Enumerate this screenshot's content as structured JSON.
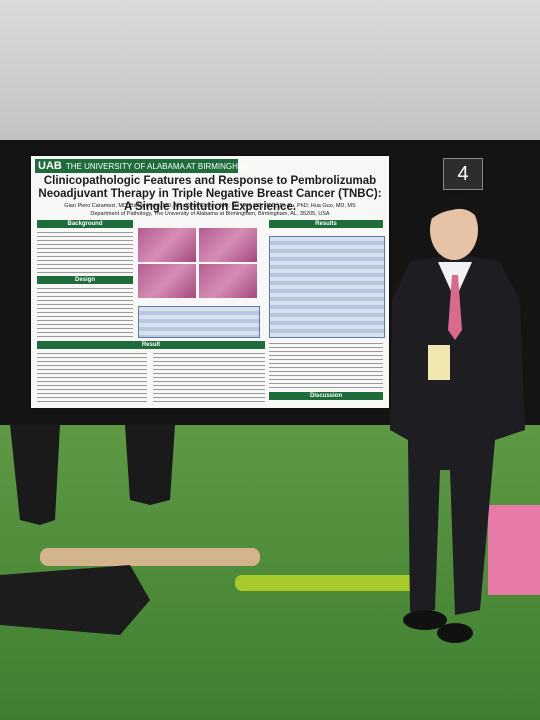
{
  "booth_number": "4",
  "poster": {
    "logo": "UAB",
    "institution": "THE UNIVERSITY OF ALABAMA AT BIRMINGHAM",
    "title": "Clinicopathologic Features and Response to Pembrolizumab Neoadjuvant Therapy in Triple Negative Breast Cancer (TNBC): A Single Institution Experience.",
    "authors": "Gian Piero Caramezi, MD; Bichan Ning, MD, MS; Katia Khoury, MD; Shi Wei, MD, PhD; Jia Xu, PhD; Hua Guo, MD, MS",
    "affiliation": "Department of Pathology, The University of Alabama at Birmingham, Birmingham, AL, 35205, USA",
    "sections": [
      "Background",
      "Design",
      "Result",
      "Results",
      "Discussion"
    ]
  }
}
